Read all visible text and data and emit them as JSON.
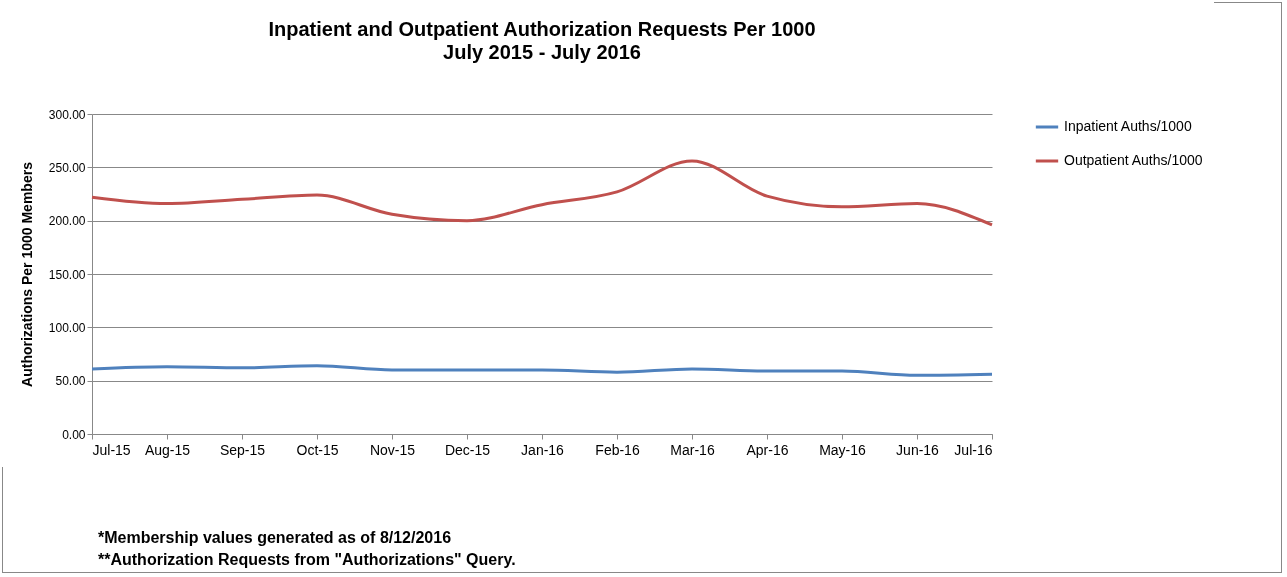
{
  "chart_data": {
    "type": "line",
    "title": "Inpatient and Outpatient Authorization Requests Per 1000",
    "subtitle": "July 2015 - July 2016",
    "ylabel": "Authorizations Per 1000 Members",
    "categories": [
      "Jul-15",
      "Aug-15",
      "Sep-15",
      "Oct-15",
      "Nov-15",
      "Dec-15",
      "Jan-16",
      "Feb-16",
      "Mar-16",
      "Apr-16",
      "May-16",
      "Jun-16",
      "Jul-16"
    ],
    "series": [
      {
        "name": "Inpatient Auths/1000",
        "color": "#4f81bd",
        "values": [
          61,
          63,
          62,
          64,
          60,
          60,
          60,
          58,
          61,
          59,
          59,
          55,
          56
        ]
      },
      {
        "name": "Outpatient Auths/1000",
        "color": "#c0504d",
        "values": [
          222,
          216,
          220,
          224,
          206,
          200,
          215,
          227,
          256,
          223,
          213,
          216,
          196
        ]
      }
    ],
    "ylim": [
      0,
      300
    ],
    "yticks": [
      {
        "value": 0,
        "label": "0.00"
      },
      {
        "value": 50,
        "label": "50.00"
      },
      {
        "value": 100,
        "label": "100.00"
      },
      {
        "value": 150,
        "label": "150.00"
      },
      {
        "value": 200,
        "label": "200.00"
      },
      {
        "value": 250,
        "label": "250.00"
      },
      {
        "value": 300,
        "label": "300.00"
      }
    ],
    "grid": "y",
    "legend": "right",
    "marker": "none",
    "line_style": "solid",
    "annotations": [
      "*Membership values generated as of 8/12/2016",
      "**Authorization Requests from \"Authorizations\" Query."
    ]
  }
}
